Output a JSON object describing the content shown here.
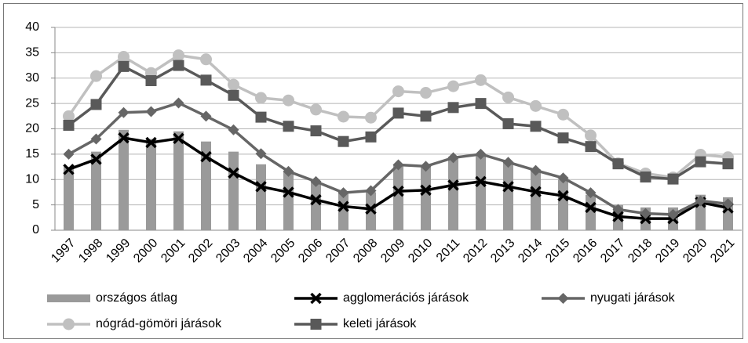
{
  "chart_data": {
    "type": "combo",
    "categories": [
      "1997",
      "1998",
      "1999",
      "2000",
      "2001",
      "2002",
      "2003",
      "2004",
      "2005",
      "2006",
      "2007",
      "2008",
      "2009",
      "2010",
      "2011",
      "2012",
      "2013",
      "2014",
      "2015",
      "2016",
      "2017",
      "2018",
      "2019",
      "2020",
      "2021"
    ],
    "ylim": [
      0,
      40
    ],
    "yticks": [
      0,
      5,
      10,
      15,
      20,
      25,
      30,
      35,
      40
    ],
    "grid": true,
    "series": [
      {
        "name": "országos átlag",
        "type": "bar",
        "color": "#9a9a9a",
        "values": [
          12.5,
          15.5,
          19.8,
          18,
          19.5,
          17.5,
          15.5,
          13,
          11.5,
          9.5,
          7.5,
          7.5,
          13,
          12.5,
          14.5,
          15,
          13.5,
          12,
          10,
          7,
          5,
          4.5,
          4.5,
          7,
          6.5
        ]
      },
      {
        "name": "agglomerációs járások",
        "type": "line",
        "marker": "x",
        "color": "#000000",
        "values": [
          12,
          14,
          18.2,
          17.3,
          18.1,
          14.5,
          11.3,
          8.6,
          7.5,
          6,
          4.7,
          4.2,
          7.7,
          7.9,
          8.9,
          9.6,
          8.6,
          7.6,
          6.8,
          4.5,
          2.7,
          2.3,
          2.3,
          5.5,
          4.4
        ]
      },
      {
        "name": "nyugati járások",
        "type": "line",
        "marker": "diamond",
        "color": "#666666",
        "values": [
          15,
          18,
          23.2,
          23.4,
          25.1,
          22.5,
          19.8,
          15.1,
          11.6,
          9.6,
          7.4,
          7.8,
          12.9,
          12.6,
          14.3,
          15,
          13.4,
          11.8,
          10.3,
          7.4,
          4.1,
          3.3,
          3.1,
          5.8,
          5.2
        ]
      },
      {
        "name": "nógrád-gömöri járások",
        "type": "line",
        "marker": "circle",
        "color": "#c0c0c0",
        "values": [
          22.5,
          30.4,
          34.2,
          31,
          34.5,
          33.7,
          28.7,
          26.1,
          25.6,
          23.8,
          22.4,
          22.2,
          27.4,
          27.1,
          28.4,
          29.6,
          26.2,
          24.5,
          22.8,
          18.7,
          13.2,
          11.2,
          10.4,
          14.9,
          14.4
        ]
      },
      {
        "name": "keleti járások",
        "type": "line",
        "marker": "square",
        "color": "#595959",
        "values": [
          20.7,
          24.8,
          32.3,
          29.5,
          32.5,
          29.6,
          26.6,
          22.3,
          20.5,
          19.6,
          17.5,
          18.4,
          23.1,
          22.5,
          24.2,
          25,
          21,
          20.5,
          18.2,
          16.5,
          13.1,
          10.5,
          10.1,
          13.5,
          13.1
        ]
      }
    ]
  }
}
